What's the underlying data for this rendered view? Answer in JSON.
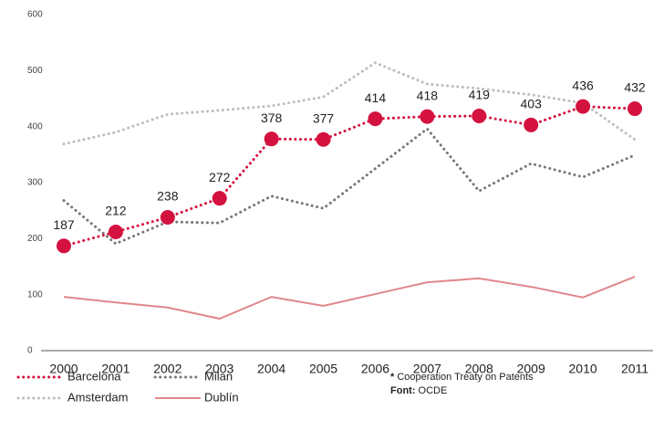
{
  "chart_data": {
    "type": "line",
    "x": [
      "2000",
      "2001",
      "2002",
      "2003",
      "2004",
      "2005",
      "2006",
      "2007",
      "2008",
      "2009",
      "2010",
      "2011"
    ],
    "series": [
      {
        "name": "Amsterdam",
        "color": "#bdbdbd",
        "style": "dotted",
        "values": [
          369,
          390,
          422,
          429,
          437,
          453,
          514,
          476,
          468,
          457,
          442,
          377
        ]
      },
      {
        "name": "Milan",
        "color": "#777777",
        "style": "dotted",
        "values": [
          268,
          191,
          230,
          228,
          276,
          254,
          325,
          396,
          285,
          334,
          310,
          349
        ]
      },
      {
        "name": "Dublín",
        "color": "#e0878c",
        "style": "solid",
        "values": [
          96,
          86,
          77,
          57,
          96,
          80,
          101,
          122,
          129,
          114,
          95,
          132
        ]
      },
      {
        "name": "Barcelona",
        "color": "#d4123f",
        "style": "dotted",
        "markers": true,
        "data_labels": true,
        "values": [
          187,
          212,
          238,
          272,
          378,
          377,
          414,
          418,
          419,
          403,
          436,
          432
        ]
      }
    ],
    "ylim": [
      0,
      600
    ],
    "yticks": [
      0,
      100,
      200,
      300,
      400,
      500,
      600
    ],
    "notes": {
      "asterisk": "*",
      "text": "Cooperation Treaty on Patents"
    },
    "source": {
      "label": "Font:",
      "text": "OCDE"
    }
  }
}
